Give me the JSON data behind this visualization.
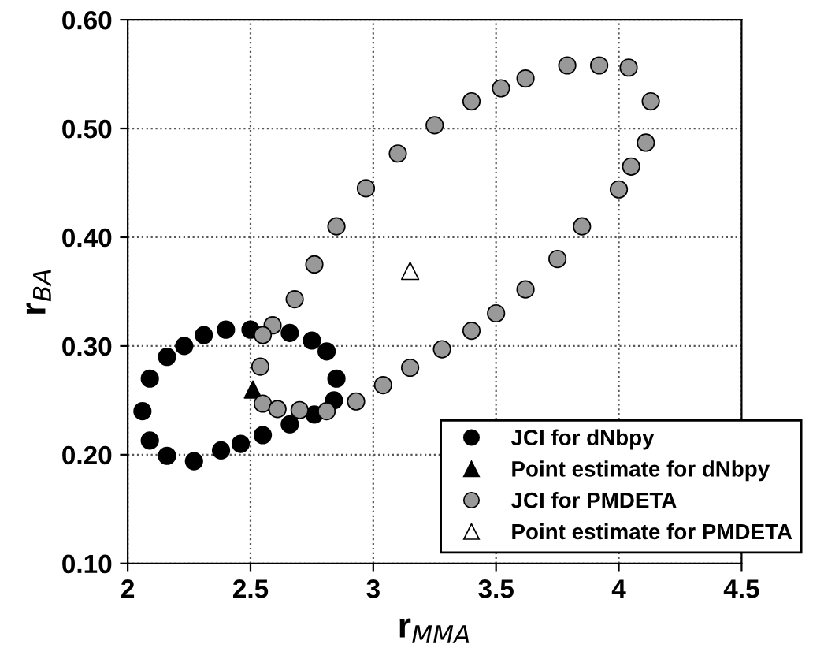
{
  "chart_data": {
    "type": "scatter",
    "xlabel": "r$_{MMA}$",
    "ylabel": "r$_{BA}$",
    "xlim": [
      2,
      4.5
    ],
    "ylim": [
      0.1,
      0.6
    ],
    "xticks": [
      2,
      2.5,
      3,
      3.5,
      4,
      4.5
    ],
    "yticks": [
      {
        "value": 0.1,
        "label": "0.10"
      },
      {
        "value": 0.2,
        "label": "0.20"
      },
      {
        "value": 0.3,
        "label": "0.30"
      },
      {
        "value": 0.4,
        "label": "0.40"
      },
      {
        "value": 0.5,
        "label": "0.50"
      },
      {
        "value": 0.6,
        "label": "0.60"
      }
    ],
    "grid": true,
    "legend": "bottom right",
    "series": [
      {
        "name": "JCI for dNbpy",
        "color": "#000000",
        "marker": "circle",
        "x": [
          2.06,
          2.09,
          2.16,
          2.23,
          2.31,
          2.4,
          2.5,
          2.66,
          2.75,
          2.81,
          2.85,
          2.84,
          2.76,
          2.66,
          2.55,
          2.46,
          2.38,
          2.27,
          2.16,
          2.09
        ],
        "values": [
          0.24,
          0.27,
          0.29,
          0.3,
          0.31,
          0.315,
          0.315,
          0.312,
          0.305,
          0.295,
          0.27,
          0.25,
          0.237,
          0.228,
          0.218,
          0.21,
          0.204,
          0.194,
          0.199,
          0.213
        ]
      },
      {
        "name": "Point estimate for dNbpy",
        "color": "#000000",
        "marker": "triangle",
        "x": [
          2.51
        ],
        "values": [
          0.26
        ]
      },
      {
        "name": "JCI for PMDETA",
        "color": "#999999",
        "marker": "circle",
        "x": [
          2.55,
          2.59,
          2.68,
          2.76,
          2.85,
          2.97,
          3.1,
          3.25,
          3.4,
          3.52,
          3.62,
          3.79,
          3.92,
          4.04,
          4.13,
          4.11,
          4.05,
          4.0,
          3.85,
          3.75,
          3.62,
          3.5,
          3.4,
          3.28,
          3.15,
          3.04,
          2.93,
          2.81,
          2.7,
          2.61,
          2.54,
          2.55
        ],
        "values": [
          0.247,
          0.319,
          0.343,
          0.375,
          0.41,
          0.445,
          0.477,
          0.503,
          0.525,
          0.537,
          0.546,
          0.558,
          0.558,
          0.556,
          0.525,
          0.487,
          0.465,
          0.444,
          0.41,
          0.38,
          0.352,
          0.33,
          0.314,
          0.297,
          0.28,
          0.264,
          0.249,
          0.24,
          0.241,
          0.242,
          0.281,
          0.31
        ]
      },
      {
        "name": "Point estimate for PMDETA",
        "color": "#ffffff",
        "marker": "triangle",
        "x": [
          3.15
        ],
        "values": [
          0.369
        ]
      }
    ]
  }
}
